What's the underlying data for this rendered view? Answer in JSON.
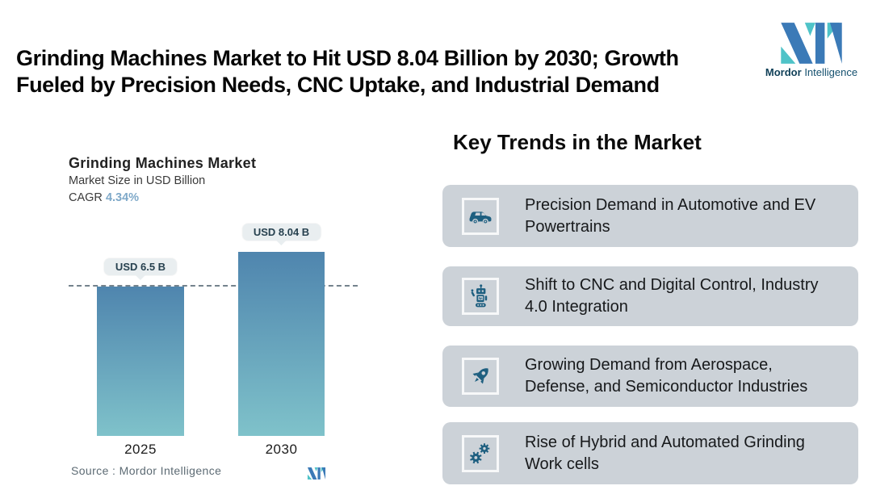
{
  "header": {
    "title_lines": [
      "Grinding Machines Market to Hit USD 8.04 Billion by 2030; Growth",
      "Fueled by Precision Needs, CNC Uptake, and Industrial Demand"
    ],
    "brand": {
      "name_bold": "Mordor",
      "name_regular": "Intelligence"
    }
  },
  "chart_data": {
    "type": "bar",
    "title": "Grinding Machines Market",
    "subtitle": "Market Size in USD Billion",
    "cagr_label": "CAGR",
    "cagr_value": "4.34%",
    "categories": [
      "2025",
      "2030"
    ],
    "values": [
      6.5,
      8.04
    ],
    "value_labels": [
      "USD 6.5 B",
      "USD 8.04 B"
    ],
    "unit": "USD Billion",
    "ylim": [
      0,
      9
    ],
    "grid": false,
    "legend": "none",
    "annotations": [
      "horizontal dashed reference line at 2025 value of 6.5"
    ],
    "source": "Source :  Mordor Intelligence"
  },
  "trends": {
    "heading": "Key Trends in the Market",
    "items": [
      {
        "icon": "car-icon",
        "lines": [
          "Precision Demand in Automotive and EV",
          "Powertrains"
        ]
      },
      {
        "icon": "robot-icon",
        "lines": [
          "Shift to CNC and Digital Control, Industry",
          "4.0 Integration"
        ]
      },
      {
        "icon": "rocket-icon",
        "lines": [
          "Growing Demand from Aerospace,",
          "Defense, and Semiconductor Industries"
        ]
      },
      {
        "icon": "gears-icon",
        "lines": [
          "Rise of Hybrid and Automated Grinding",
          "Work cells"
        ]
      }
    ]
  },
  "colors": {
    "brand_blue": "#3b7ab7",
    "brand_teal": "#4fc3c8",
    "icon_teal": "#1e5f80",
    "card_bg": "#ccd2d8",
    "bar_top": "#4f85ae",
    "bar_bottom": "#7fc2ca",
    "cagr_value": "#7fa9c9",
    "pill_bg": "#e9eef0",
    "pill_text": "#27414f",
    "dash_line": "#74838d",
    "source_text": "#5d6b74"
  }
}
